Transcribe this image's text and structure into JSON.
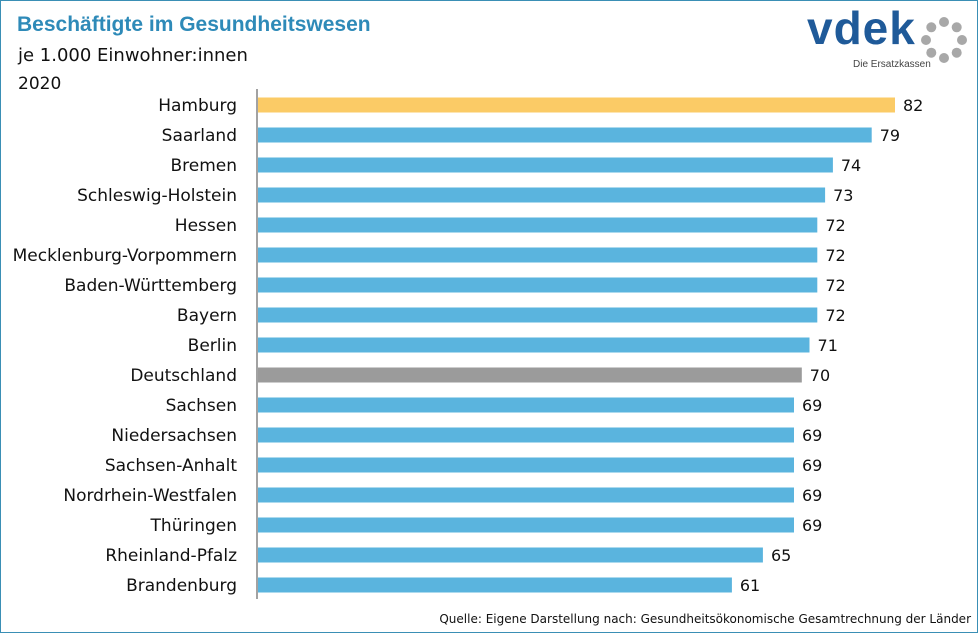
{
  "header": {
    "title": "Beschäftigte im Gesundheitswesen",
    "subtitle": "je 1.000 Einwohner:innen",
    "year": "2020"
  },
  "logo": {
    "wordmark": "vdek",
    "tagline": "Die Ersatzkassen",
    "icon": "dotted-circle-icon"
  },
  "colors": {
    "title": "#2e8ab8",
    "bar_default": "#5ab4de",
    "bar_highlight": "#fbcb66",
    "bar_national": "#9b9b9b",
    "logo": "#1f5a99"
  },
  "chart_data": {
    "type": "bar",
    "orientation": "horizontal",
    "categories": [
      "Hamburg",
      "Saarland",
      "Bremen",
      "Schleswig-Holstein",
      "Hessen",
      "Mecklenburg-Vorpommern",
      "Baden-Württemberg",
      "Bayern",
      "Berlin",
      "Deutschland",
      "Sachsen",
      "Niedersachsen",
      "Sachsen-Anhalt",
      "Nordrhein-Westfalen",
      "Thüringen",
      "Rheinland-Pfalz",
      "Brandenburg"
    ],
    "values": [
      82,
      79,
      74,
      73,
      72,
      72,
      72,
      72,
      71,
      70,
      69,
      69,
      69,
      69,
      69,
      65,
      61
    ],
    "value_labels": [
      "82",
      "79",
      "74",
      "73",
      "72",
      "72",
      "72",
      "72",
      "71",
      "70",
      "69",
      "69",
      "69",
      "69",
      "69",
      "65",
      "61"
    ],
    "bar_roles": [
      "highlight",
      "default",
      "default",
      "default",
      "default",
      "default",
      "default",
      "default",
      "default",
      "national",
      "default",
      "default",
      "default",
      "default",
      "default",
      "default",
      "default"
    ],
    "xlim": [
      0,
      82
    ],
    "grid": false,
    "legend": "none"
  },
  "source": "Quelle: Eigene Darstellung nach: Gesundheitsökonomische Gesamtrechnung der Länder"
}
